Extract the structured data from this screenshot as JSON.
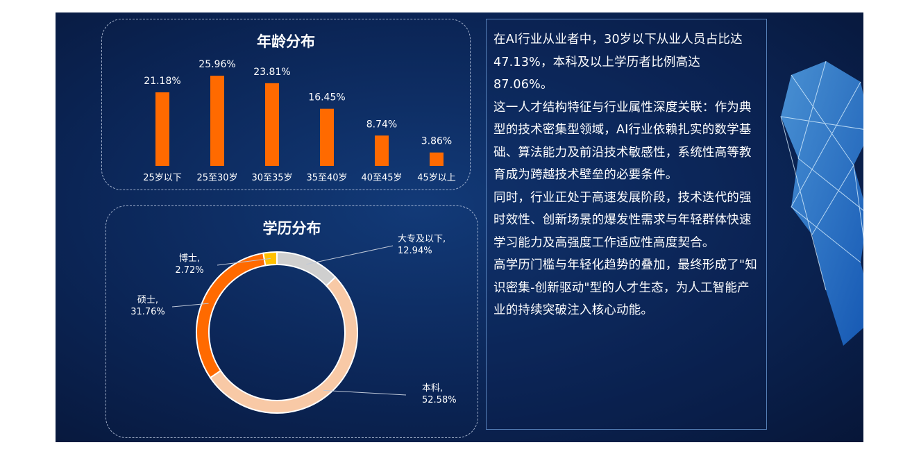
{
  "age_panel": {
    "title": "年龄分布"
  },
  "edu_panel": {
    "title": "学历分布"
  },
  "chart_data": [
    {
      "type": "bar",
      "title": "年龄分布",
      "categories": [
        "25岁以下",
        "25至30岁",
        "30至35岁",
        "35至40岁",
        "40至45岁",
        "45岁以上"
      ],
      "values": [
        21.18,
        25.96,
        23.81,
        16.45,
        8.74,
        3.86
      ],
      "data_labels": [
        "21.18%",
        "25.96%",
        "23.81%",
        "16.45%",
        "8.74%",
        "3.86%"
      ],
      "ylim": [
        0,
        30
      ],
      "grid": false,
      "legend": "none",
      "color": "#ff6a00"
    },
    {
      "type": "pie",
      "style": "donut",
      "title": "学历分布",
      "slices": [
        {
          "name": "大专及以下",
          "value": 12.94,
          "label": "12.94%",
          "color": "#cfcfcf"
        },
        {
          "name": "本科",
          "value": 52.58,
          "label": "52.58%",
          "color": "#f8c9a6"
        },
        {
          "name": "硕士",
          "value": 31.76,
          "label": "31.76%",
          "color": "#ff6a00"
        },
        {
          "name": "博士",
          "value": 2.72,
          "label": "2.72%",
          "color": "#ffc000"
        }
      ],
      "legend": "none"
    }
  ],
  "text_panel": {
    "paragraphs": [
      "在AI行业从业者中，30岁以下从业人员占比达47.13%，本科及以上学历者比例高达87.06%。",
      "这一人才结构特征与行业属性深度关联：作为典型的技术密集型领域，AI行业依赖扎实的数学基础、算法能力及前沿技术敏感性，系统性高等教育成为跨越技术壁垒的必要条件。",
      "同时，行业正处于高速发展阶段，技术迭代的强时效性、创新场景的爆发性需求与年轻群体快速学习能力及高强度工作适应性高度契合。",
      "高学历门槛与年轻化趋势的叠加，最终形成了\"知识密集-创新驱动\"型的人才生态，为人工智能产业的持续突破注入核心动能。"
    ]
  },
  "colors": {
    "background": "#0b2556",
    "bar": "#ff6a00",
    "text": "#ffffff"
  }
}
